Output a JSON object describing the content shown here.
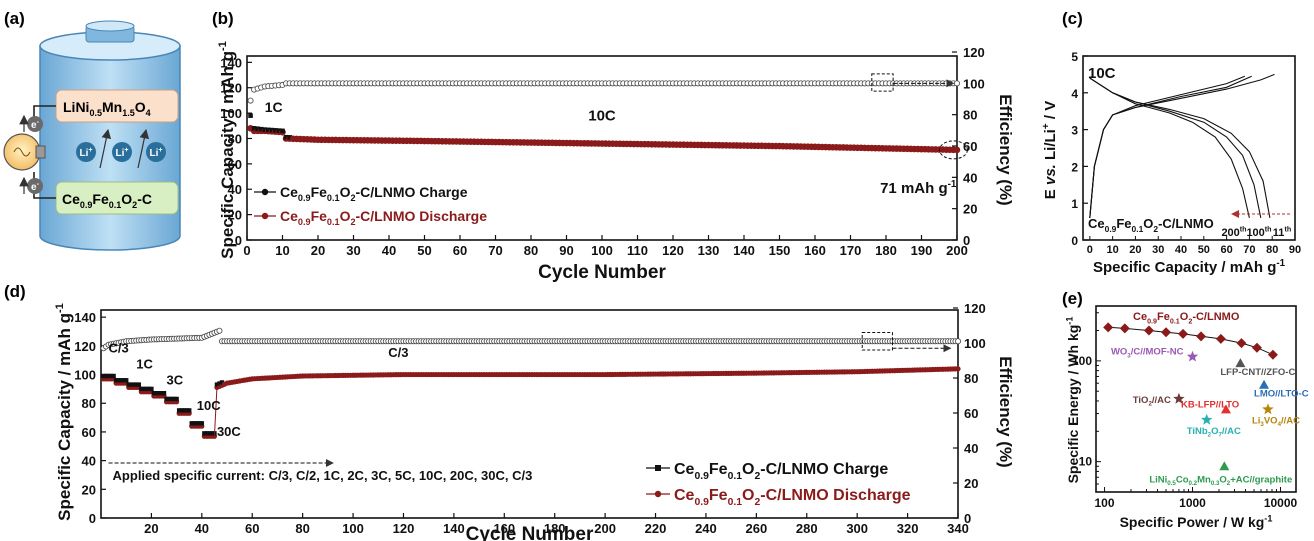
{
  "panel_labels": {
    "a": "(a)",
    "b": "(b)",
    "c": "(c)",
    "d": "(d)",
    "e": "(e)"
  },
  "schematic": {
    "cathode": "LiNi0.5Mn1.5O4",
    "anode": "Ce0.9Fe0.1O2-C",
    "ion_label": "Li+",
    "electron_label": "e-",
    "icons": [
      "battery-cylinder-icon",
      "light-bulb-icon",
      "electron-icon",
      "lithium-ion-icon"
    ],
    "colors": {
      "battery": "#8fc4e8",
      "cathode_box": "#fbe0cc",
      "anode_box": "#d8efc4",
      "ion": "#2a6f9c"
    }
  },
  "colors": {
    "charge": "#111111",
    "discharge": "#8b1a1a",
    "arrow": "#333333"
  },
  "chart_data": [
    {
      "id": "b",
      "type": "scatter",
      "xlabel": "Cycle Number",
      "ylabel": "Specific Capacity / mAh g-1",
      "y2label": "Efficiency (%)",
      "xlim": [
        0,
        200
      ],
      "ylim": [
        0,
        145
      ],
      "y2lim": [
        0,
        120
      ],
      "xticks": [
        0,
        10,
        20,
        30,
        40,
        50,
        60,
        70,
        80,
        90,
        100,
        110,
        120,
        130,
        140,
        150,
        160,
        170,
        180,
        190,
        200
      ],
      "yticks": [
        0,
        20,
        40,
        60,
        80,
        100,
        120,
        140
      ],
      "y2ticks": [
        0,
        20,
        40,
        60,
        80,
        100,
        120
      ],
      "legend": "bottom-left",
      "grid": false,
      "series": [
        {
          "name": "Ce0.9Fe0.1O2-C/LNMO Charge",
          "axis": "left",
          "color": "#111111",
          "points": [
            [
              1,
              98
            ],
            [
              2,
              88
            ],
            [
              5,
              87
            ],
            [
              10,
              86
            ],
            [
              11,
              81
            ],
            [
              20,
              80
            ],
            [
              50,
              79
            ],
            [
              100,
              77
            ],
            [
              150,
              75
            ],
            [
              200,
              71
            ]
          ]
        },
        {
          "name": "Ce0.9Fe0.1O2-C/LNMO Discharge",
          "axis": "left",
          "color": "#8b1a1a",
          "points": [
            [
              1,
              88
            ],
            [
              2,
              86
            ],
            [
              5,
              86
            ],
            [
              10,
              85
            ],
            [
              11,
              80
            ],
            [
              20,
              79
            ],
            [
              50,
              78
            ],
            [
              100,
              76
            ],
            [
              150,
              74
            ],
            [
              200,
              71
            ]
          ]
        },
        {
          "name": "Efficiency",
          "axis": "right",
          "color": "#555555",
          "points": [
            [
              1,
              89
            ],
            [
              2,
              96
            ],
            [
              5,
              98
            ],
            [
              10,
              99
            ],
            [
              11,
              100
            ],
            [
              50,
              100
            ],
            [
              100,
              100
            ],
            [
              150,
              100
            ],
            [
              200,
              100
            ]
          ]
        }
      ],
      "annotations": [
        {
          "text": "1C",
          "x": 5,
          "y": 90
        },
        {
          "text": "10C",
          "x": 100,
          "y": 83
        },
        {
          "text": "71 mAh g-1",
          "x": 184,
          "y": 55
        }
      ]
    },
    {
      "id": "c",
      "type": "line",
      "xlabel": "Specific Capacity / mAh g-1",
      "ylabel": "E vs. Li/Li+ / V",
      "xlim": [
        -3,
        90
      ],
      "ylim": [
        0,
        5
      ],
      "xticks": [
        0,
        10,
        20,
        30,
        40,
        50,
        60,
        70,
        80,
        90
      ],
      "yticks": [
        0,
        1,
        2,
        3,
        4,
        5
      ],
      "title": "10C",
      "label": "Ce0.9Fe0.1O2-C/LNMO",
      "cycle_labels": [
        "200th",
        "100th",
        "11th"
      ],
      "series": [
        {
          "name": "11th",
          "charge": [
            [
              0,
              0.6
            ],
            [
              2,
              2.0
            ],
            [
              6,
              3.0
            ],
            [
              10,
              3.4
            ],
            [
              20,
              3.6
            ],
            [
              40,
              3.85
            ],
            [
              60,
              4.1
            ],
            [
              75,
              4.35
            ],
            [
              81,
              4.5
            ]
          ],
          "discharge": [
            [
              0,
              4.4
            ],
            [
              10,
              4.0
            ],
            [
              20,
              3.75
            ],
            [
              35,
              3.55
            ],
            [
              50,
              3.3
            ],
            [
              62,
              2.9
            ],
            [
              70,
              2.4
            ],
            [
              76,
              1.6
            ],
            [
              79,
              0.6
            ]
          ]
        },
        {
          "name": "100th",
          "charge": [
            [
              0,
              0.6
            ],
            [
              2,
              2.0
            ],
            [
              6,
              3.0
            ],
            [
              10,
              3.4
            ],
            [
              20,
              3.6
            ],
            [
              40,
              3.9
            ],
            [
              60,
              4.15
            ],
            [
              71,
              4.45
            ]
          ],
          "discharge": [
            [
              0,
              4.4
            ],
            [
              10,
              4.0
            ],
            [
              20,
              3.75
            ],
            [
              35,
              3.5
            ],
            [
              50,
              3.2
            ],
            [
              60,
              2.8
            ],
            [
              67,
              2.3
            ],
            [
              72,
              1.5
            ],
            [
              75,
              0.6
            ]
          ]
        },
        {
          "name": "200th",
          "charge": [
            [
              0,
              0.6
            ],
            [
              2,
              2.0
            ],
            [
              6,
              3.0
            ],
            [
              10,
              3.4
            ],
            [
              20,
              3.65
            ],
            [
              40,
              3.95
            ],
            [
              60,
              4.25
            ],
            [
              68,
              4.45
            ]
          ],
          "discharge": [
            [
              0,
              4.4
            ],
            [
              10,
              4.0
            ],
            [
              20,
              3.7
            ],
            [
              35,
              3.45
            ],
            [
              45,
              3.2
            ],
            [
              55,
              2.8
            ],
            [
              62,
              2.2
            ],
            [
              67,
              1.4
            ],
            [
              70,
              0.6
            ]
          ]
        }
      ]
    },
    {
      "id": "d",
      "type": "scatter",
      "xlabel": "Cycle Number",
      "ylabel": "Specific Capacity / mAh g-1",
      "y2label": "Efficiency (%)",
      "xlim": [
        0,
        340
      ],
      "ylim": [
        0,
        145
      ],
      "y2lim": [
        0,
        120
      ],
      "xticks": [
        20,
        40,
        60,
        80,
        100,
        120,
        140,
        160,
        180,
        200,
        220,
        240,
        260,
        280,
        300,
        320,
        340
      ],
      "yticks": [
        0,
        20,
        40,
        60,
        80,
        100,
        120,
        140
      ],
      "y2ticks": [
        0,
        20,
        40,
        60,
        80,
        100,
        120
      ],
      "legend": "bottom-right",
      "grid": false,
      "rate_text": "Applied specific current: C/3, C/2, 1C, 2C, 3C, 5C, 10C, 20C, 30C, C/3",
      "rates": [
        "C/3",
        "1C",
        "3C",
        "10C",
        "30C",
        "C/3"
      ],
      "steps": [
        {
          "from": 1,
          "to": 5,
          "value": 98
        },
        {
          "from": 6,
          "to": 10,
          "value": 95
        },
        {
          "from": 11,
          "to": 15,
          "value": 92
        },
        {
          "from": 16,
          "to": 20,
          "value": 89
        },
        {
          "from": 21,
          "to": 25,
          "value": 86
        },
        {
          "from": 26,
          "to": 30,
          "value": 82
        },
        {
          "from": 31,
          "to": 35,
          "value": 74
        },
        {
          "from": 36,
          "to": 40,
          "value": 65
        },
        {
          "from": 41,
          "to": 45,
          "value": 58
        }
      ],
      "recovery": [
        [
          46,
          92
        ],
        [
          50,
          95
        ],
        [
          60,
          98
        ],
        [
          80,
          100
        ],
        [
          120,
          101
        ],
        [
          200,
          101
        ],
        [
          260,
          102
        ],
        [
          300,
          103
        ],
        [
          340,
          105
        ]
      ],
      "efficiency": [
        [
          1,
          97
        ],
        [
          3,
          99
        ],
        [
          10,
          101
        ],
        [
          20,
          102
        ],
        [
          40,
          103
        ],
        [
          47,
          107
        ],
        [
          48,
          101
        ],
        [
          100,
          101
        ],
        [
          200,
          101
        ],
        [
          340,
          101
        ]
      ],
      "series": [
        {
          "name": "Ce0.9Fe0.1O2-C/LNMO Charge",
          "color": "#111111"
        },
        {
          "name": "Ce0.9Fe0.1O2-C/LNMO Discharge",
          "color": "#8b1a1a"
        }
      ]
    },
    {
      "id": "e",
      "type": "scatter",
      "xlabel": "Specific Power / W kg-1",
      "ylabel": "Specific Energy / Wh kg-1",
      "xscale": "log",
      "yscale": "log",
      "xlim": [
        80,
        15000
      ],
      "ylim": [
        5,
        350
      ],
      "xticks": [
        100,
        1000,
        10000
      ],
      "yticks": [
        10,
        100
      ],
      "main_series": {
        "name": "Ce0.9Fe0.1O2-C/LNMO",
        "color": "#8b1a1a",
        "points": [
          [
            110,
            215
          ],
          [
            170,
            210
          ],
          [
            320,
            200
          ],
          [
            500,
            192
          ],
          [
            780,
            185
          ],
          [
            1250,
            175
          ],
          [
            2100,
            165
          ],
          [
            3600,
            150
          ],
          [
            5400,
            135
          ],
          [
            8200,
            115
          ]
        ]
      },
      "references": [
        {
          "name": "WO3/C//MOF-NC",
          "x": 1000,
          "y": 110,
          "marker": "star",
          "color": "#9b59b6"
        },
        {
          "name": "LFP-CNT//ZFO-C",
          "x": 3500,
          "y": 95,
          "marker": "triangle",
          "color": "#555555"
        },
        {
          "name": "LMO//LTO-C",
          "x": 6500,
          "y": 58,
          "marker": "triangle",
          "color": "#2a6fb5"
        },
        {
          "name": "TiO2//AC",
          "x": 700,
          "y": 42,
          "marker": "star",
          "color": "#6b3a3a"
        },
        {
          "name": "KB-LFP//LTO",
          "x": 2400,
          "y": 33,
          "marker": "triangle",
          "color": "#e03030"
        },
        {
          "name": "Li3VO4//AC",
          "x": 7200,
          "y": 33,
          "marker": "star",
          "color": "#b8860b"
        },
        {
          "name": "TiNb2O7//AC",
          "x": 1450,
          "y": 26,
          "marker": "star",
          "color": "#2ab0b0"
        },
        {
          "name": "LiNi0.5Co0.2Mn0.3O2+AC//graphite",
          "x": 2300,
          "y": 9,
          "marker": "triangle",
          "color": "#2e9b4e"
        }
      ]
    }
  ]
}
